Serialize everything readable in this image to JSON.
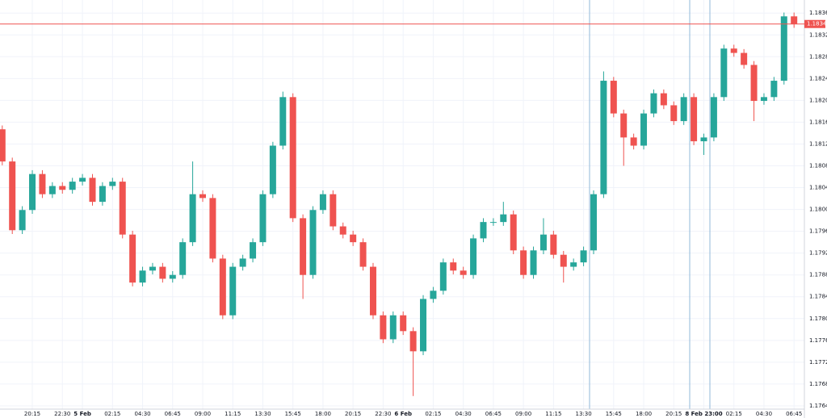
{
  "chart_data": {
    "type": "candlestick",
    "categories": [
      null,
      null,
      null,
      "20:15",
      null,
      null,
      "22:30",
      null,
      "5 Feb",
      null,
      null,
      "02:15",
      null,
      null,
      "04:30",
      null,
      null,
      "06:45",
      null,
      null,
      "09:00",
      null,
      null,
      "11:15",
      null,
      null,
      "13:30",
      null,
      null,
      "15:45",
      null,
      null,
      "18:00",
      null,
      null,
      "20:15",
      null,
      null,
      "22:30",
      null,
      "6 Feb",
      null,
      null,
      "02:15",
      null,
      null,
      "04:30",
      null,
      null,
      "06:45",
      null,
      null,
      "09:00",
      null,
      null,
      "11:15",
      null,
      null,
      "13:30",
      null,
      null,
      "15:45",
      null,
      null,
      "18:00",
      null,
      null,
      "20:15",
      null,
      null,
      "8 Feb 23:00",
      null,
      null,
      "02:15",
      null,
      null,
      "04:30",
      null,
      null,
      "06:45"
    ],
    "open": [
      1.18147,
      1.18088,
      1.17962,
      1.17999,
      1.18065,
      1.18028,
      1.18043,
      1.18036,
      1.18051,
      1.18058,
      1.18014,
      1.18043,
      1.18051,
      1.17954,
      1.17866,
      1.17888,
      1.17895,
      1.17873,
      1.1788,
      1.1794,
      1.18028,
      1.18021,
      1.1791,
      1.17806,
      1.17895,
      1.1791,
      1.1794,
      1.18028,
      1.18117,
      1.18206,
      1.17984,
      1.1788,
      1.17999,
      1.18028,
      1.17969,
      1.17954,
      1.1794,
      1.17895,
      1.17806,
      1.17762,
      1.17806,
      1.17777,
      1.1774,
      1.17836,
      1.17851,
      1.17903,
      1.17888,
      1.1788,
      1.17947,
      1.17977,
      1.17977,
      1.17991,
      1.17925,
      1.1788,
      1.17925,
      1.17954,
      1.17917,
      1.17895,
      1.17903,
      1.17925,
      1.18028,
      1.18236,
      1.18176,
      1.18132,
      1.18117,
      1.18176,
      1.18213,
      1.18191,
      1.18162,
      1.18206,
      1.18125,
      1.18132,
      1.18206,
      1.18295,
      1.18287,
      1.18265,
      1.18199,
      1.18206,
      1.18236,
      1.18354
    ],
    "high": [
      1.18154,
      1.18095,
      1.18006,
      1.18072,
      1.18072,
      1.1805,
      1.1805,
      1.18058,
      1.18065,
      1.18065,
      1.1805,
      1.18058,
      1.18058,
      1.17961,
      1.17895,
      1.17902,
      1.17902,
      1.17887,
      1.17947,
      1.18088,
      1.18035,
      1.18028,
      1.17917,
      1.17902,
      1.17917,
      1.17947,
      1.18035,
      1.18124,
      1.18216,
      1.18213,
      1.17991,
      1.18006,
      1.18035,
      1.18035,
      1.17976,
      1.17961,
      1.17947,
      1.17902,
      1.17813,
      1.17813,
      1.17813,
      1.17784,
      1.17843,
      1.17858,
      1.1791,
      1.1791,
      1.17895,
      1.17954,
      1.17984,
      1.17984,
      1.18014,
      1.17998,
      1.17932,
      1.17932,
      1.17984,
      1.17961,
      1.17924,
      1.1791,
      1.17932,
      1.18035,
      1.18253,
      1.18243,
      1.18183,
      1.18139,
      1.18183,
      1.1822,
      1.1822,
      1.18198,
      1.18213,
      1.18213,
      1.18139,
      1.18213,
      1.18302,
      1.18302,
      1.18294,
      1.18272,
      1.18213,
      1.18243,
      1.18361,
      1.18361
    ],
    "low": [
      1.18081,
      1.17955,
      1.17955,
      1.17992,
      1.18021,
      1.18021,
      1.18029,
      1.18029,
      1.18044,
      1.18007,
      1.18007,
      1.18036,
      1.17947,
      1.17859,
      1.17859,
      1.17881,
      1.17866,
      1.17866,
      1.17873,
      1.17933,
      1.18014,
      1.17903,
      1.17799,
      1.17799,
      1.17888,
      1.17903,
      1.17933,
      1.18021,
      1.1811,
      1.17977,
      1.17836,
      1.17873,
      1.17992,
      1.17962,
      1.17947,
      1.17933,
      1.17888,
      1.17799,
      1.17755,
      1.17755,
      1.1777,
      1.17658,
      1.17733,
      1.17829,
      1.17844,
      1.17881,
      1.17873,
      1.17873,
      1.1794,
      1.1797,
      1.1797,
      1.17918,
      1.17873,
      1.17873,
      1.17918,
      1.1791,
      1.17866,
      1.17888,
      1.17896,
      1.17918,
      1.18021,
      1.18169,
      1.1808,
      1.1811,
      1.1811,
      1.18169,
      1.18184,
      1.18155,
      1.18155,
      1.18118,
      1.181,
      1.18125,
      1.18199,
      1.1828,
      1.18258,
      1.18162,
      1.18192,
      1.18199,
      1.18229,
      1.18333
    ],
    "close": [
      1.18088,
      1.17962,
      1.17999,
      1.18065,
      1.18028,
      1.18043,
      1.18036,
      1.18051,
      1.18058,
      1.18014,
      1.18043,
      1.18051,
      1.17954,
      1.17866,
      1.17888,
      1.17895,
      1.17873,
      1.1788,
      1.1794,
      1.18028,
      1.18021,
      1.1791,
      1.17806,
      1.17895,
      1.1791,
      1.1794,
      1.18028,
      1.18117,
      1.18206,
      1.17984,
      1.1788,
      1.17999,
      1.18028,
      1.17969,
      1.17954,
      1.1794,
      1.17895,
      1.17806,
      1.17762,
      1.17806,
      1.17777,
      1.1774,
      1.17836,
      1.17851,
      1.17903,
      1.17888,
      1.1788,
      1.17947,
      1.17977,
      1.17977,
      1.17991,
      1.17925,
      1.1788,
      1.17925,
      1.17954,
      1.17917,
      1.17895,
      1.17903,
      1.17925,
      1.18028,
      1.18236,
      1.18176,
      1.18132,
      1.18117,
      1.18176,
      1.18213,
      1.18191,
      1.18162,
      1.18206,
      1.18125,
      1.18132,
      1.18206,
      1.18295,
      1.18287,
      1.18265,
      1.18199,
      1.18206,
      1.18236,
      1.18354,
      1.1834
    ],
    "up_color": "#26a69a",
    "down_color": "#ef5350",
    "last_price": {
      "value": 1.1834,
      "label": "1.18340"
    },
    "last_price_color": "#ef5350",
    "ylim": [
      1.17634,
      1.18384
    ],
    "yticks": [
      {
        "value": 1.1836,
        "label": "1.18360"
      },
      {
        "value": 1.1832,
        "label": "1.18320"
      },
      {
        "value": 1.1828,
        "label": "1.18280"
      },
      {
        "value": 1.1824,
        "label": "1.18240"
      },
      {
        "value": 1.182,
        "label": "1.18200"
      },
      {
        "value": 1.1816,
        "label": "1.18160"
      },
      {
        "value": 1.1812,
        "label": "1.18120"
      },
      {
        "value": 1.1808,
        "label": "1.18080"
      },
      {
        "value": 1.1804,
        "label": "1.18040"
      },
      {
        "value": 1.18,
        "label": "1.18000"
      },
      {
        "value": 1.1796,
        "label": "1.17960"
      },
      {
        "value": 1.1792,
        "label": "1.17920"
      },
      {
        "value": 1.1788,
        "label": "1.17880"
      },
      {
        "value": 1.1784,
        "label": "1.17840"
      },
      {
        "value": 1.178,
        "label": "1.17800"
      },
      {
        "value": 1.1776,
        "label": "1.17760"
      },
      {
        "value": 1.1772,
        "label": "1.17720"
      },
      {
        "value": 1.1768,
        "label": "1.17680"
      },
      {
        "value": 1.1764,
        "label": "1.17640"
      }
    ],
    "grid": true
  }
}
